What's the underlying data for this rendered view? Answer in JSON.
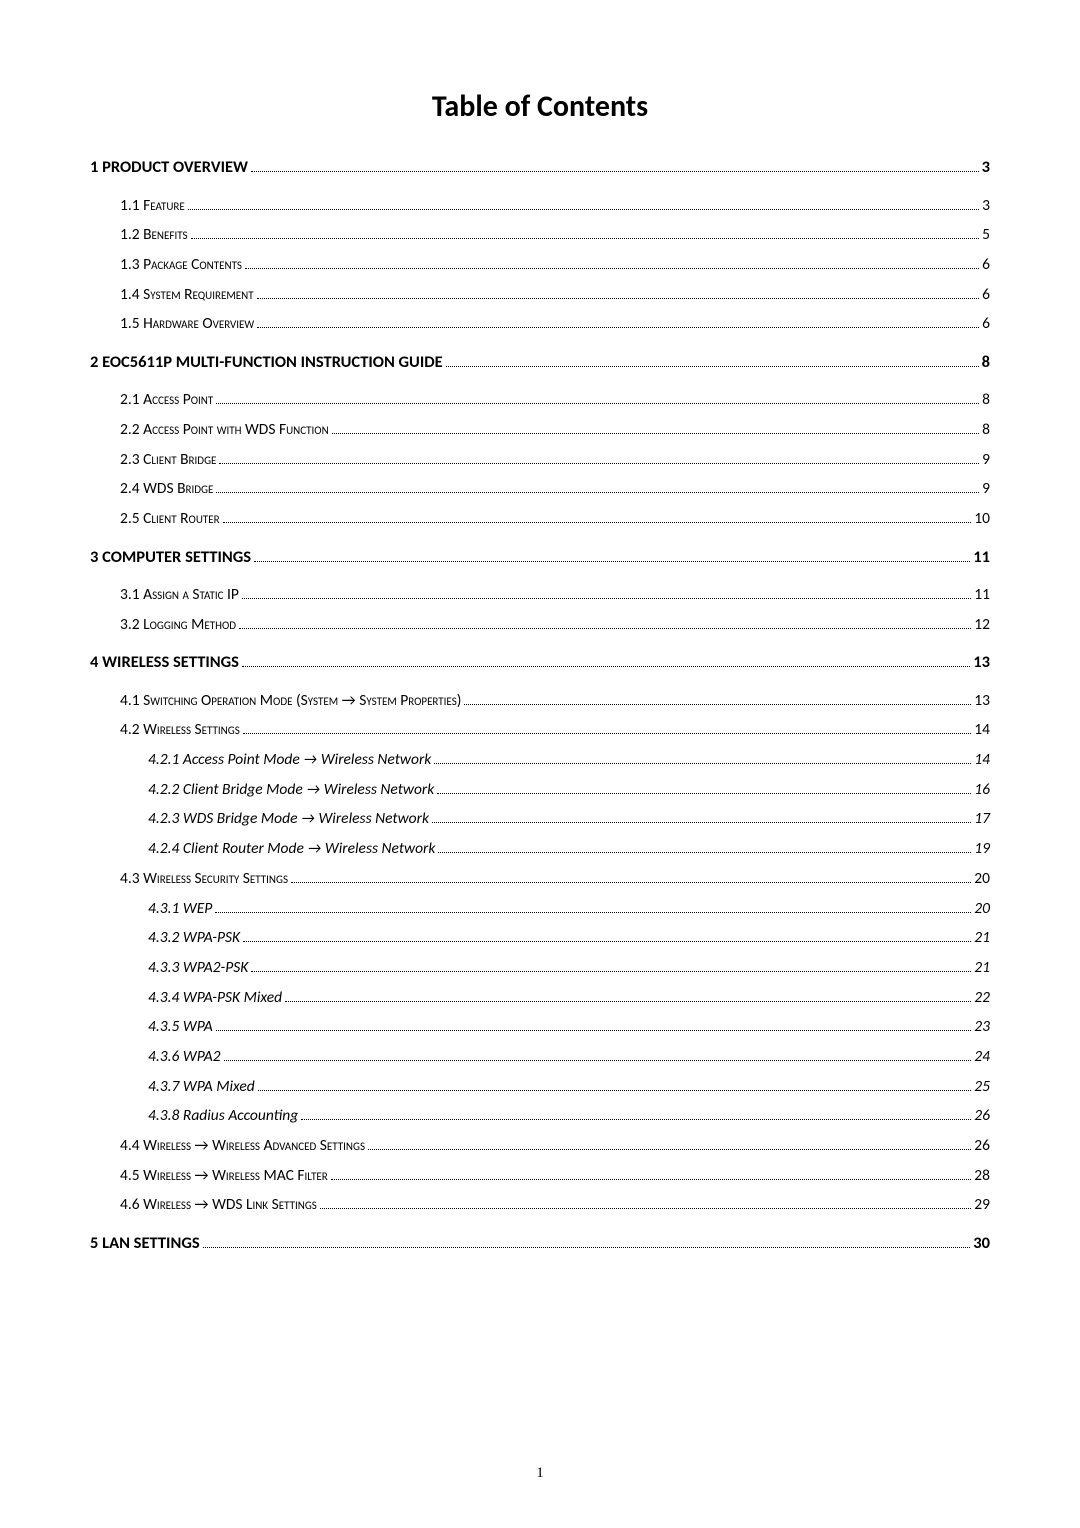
{
  "title": "Table of Contents",
  "footer_page": "1",
  "entries": [
    {
      "level": 1,
      "label": "1 PRODUCT OVERVIEW ",
      "page": " 3"
    },
    {
      "level": 2,
      "label": "1.1 Feature",
      "page": " 3"
    },
    {
      "level": 2,
      "label": "1.2 Benefits",
      "page": " 5"
    },
    {
      "level": 2,
      "label": "1.3 Package Contents ",
      "page": " 6"
    },
    {
      "level": 2,
      "label": "1.4 System Requirement ",
      "page": " 6"
    },
    {
      "level": 2,
      "label": "1.5 Hardware Overview ",
      "page": " 6"
    },
    {
      "level": 1,
      "label": "2 EOC5611P MULTI-FUNCTION INSTRUCTION GUIDE",
      "page": " 8"
    },
    {
      "level": 2,
      "label": "2.1 Access Point ",
      "page": " 8"
    },
    {
      "level": 2,
      "label": "2.2 Access Point with WDS Function",
      "page": " 8"
    },
    {
      "level": 2,
      "label": "2.3 Client Bridge ",
      "page": " 9"
    },
    {
      "level": 2,
      "label": "2.4 WDS Bridge ",
      "page": " 9"
    },
    {
      "level": 2,
      "label": "2.5 Client Router ",
      "page": " 10"
    },
    {
      "level": 1,
      "label": "3 COMPUTER SETTINGS ",
      "page": " 11"
    },
    {
      "level": 2,
      "label": "3.1 Assign a Static IP",
      "page": " 11"
    },
    {
      "level": 2,
      "label": "3.2 Logging Method ",
      "page": " 12"
    },
    {
      "level": 1,
      "label": "4 WIRELESS SETTINGS ",
      "page": " 13"
    },
    {
      "level": 2,
      "label": "4.1 Switching Operation Mode (System → System Properties) ",
      "page": " 13"
    },
    {
      "level": 2,
      "label": "4.2 Wireless Settings ",
      "page": " 14"
    },
    {
      "level": 3,
      "label": "4.2.1 Access Point Mode  → Wireless Network ",
      "page": " 14"
    },
    {
      "level": 3,
      "label": "4.2.2 Client Bridge Mode  → Wireless Network ",
      "page": " 16"
    },
    {
      "level": 3,
      "label": "4.2.3 WDS Bridge Mode  → Wireless Network ",
      "page": " 17"
    },
    {
      "level": 3,
      "label": "4.2.4 Client Router Mode  → Wireless Network",
      "page": " 19"
    },
    {
      "level": 2,
      "label": "4.3 Wireless Security Settings ",
      "page": " 20"
    },
    {
      "level": 3,
      "label": "4.3.1 WEP",
      "page": " 20"
    },
    {
      "level": 3,
      "label": "4.3.2 WPA-PSK ",
      "page": " 21"
    },
    {
      "level": 3,
      "label": "4.3.3 WPA2-PSK ",
      "page": " 21"
    },
    {
      "level": 3,
      "label": "4.3.4 WPA-PSK Mixed",
      "page": " 22"
    },
    {
      "level": 3,
      "label": "4.3.5 WPA ",
      "page": " 23"
    },
    {
      "level": 3,
      "label": "4.3.6 WPA2 ",
      "page": " 24"
    },
    {
      "level": 3,
      "label": "4.3.7 WPA Mixed",
      "page": " 25"
    },
    {
      "level": 3,
      "label": "4.3.8 Radius Accounting",
      "page": " 26"
    },
    {
      "level": 2,
      "label": "4.4 Wireless → Wireless Advanced Settings ",
      "page": " 26"
    },
    {
      "level": 2,
      "label": "4.5 Wireless → Wireless MAC Filter ",
      "page": " 28"
    },
    {
      "level": 2,
      "label": "4.6 Wireless → WDS Link Settings",
      "page": " 29"
    },
    {
      "level": 1,
      "label": "5 LAN SETTINGS ",
      "page": " 30"
    }
  ]
}
